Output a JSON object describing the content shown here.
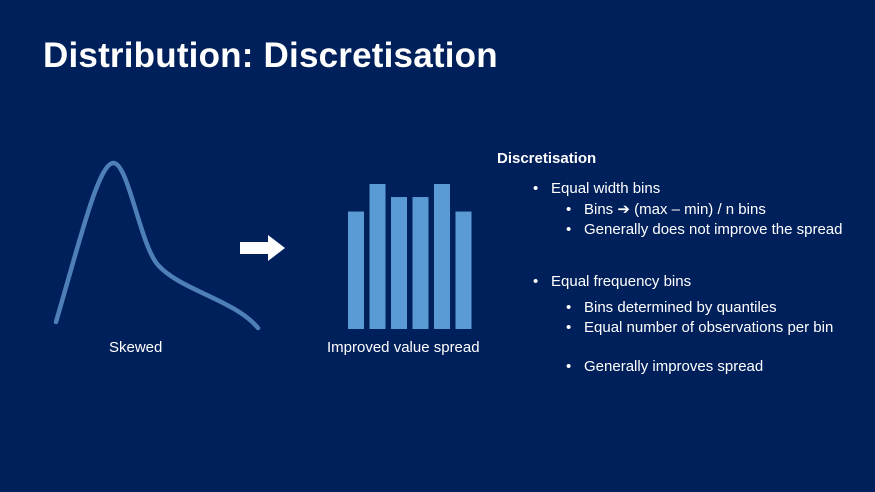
{
  "title": "Distribution: Discretisation",
  "left_caption": "Skewed",
  "middle_caption": "Improved value spread",
  "bars_relative_heights": [
    0.81,
    1.0,
    0.91,
    0.91,
    1.0,
    0.81
  ],
  "colors": {
    "background": "#00205b",
    "curve": "#4f7fb7",
    "bars": "#5b9bd5",
    "text": "#ffffff"
  },
  "panel": {
    "heading": "Discretisation",
    "bullet_symbol": "•",
    "equal_width": {
      "label": "Equal width bins",
      "sub1_prefix": "Bins",
      "sub1_arrow": "➔",
      "sub1_rest": "(max – min) / n bins",
      "sub2": "Generally does not improve the spread"
    },
    "equal_freq": {
      "label": "Equal frequency bins",
      "sub1": "Bins determined by quantiles",
      "sub2": "Equal number of observations per bin",
      "sub3": "Generally improves spread"
    }
  }
}
